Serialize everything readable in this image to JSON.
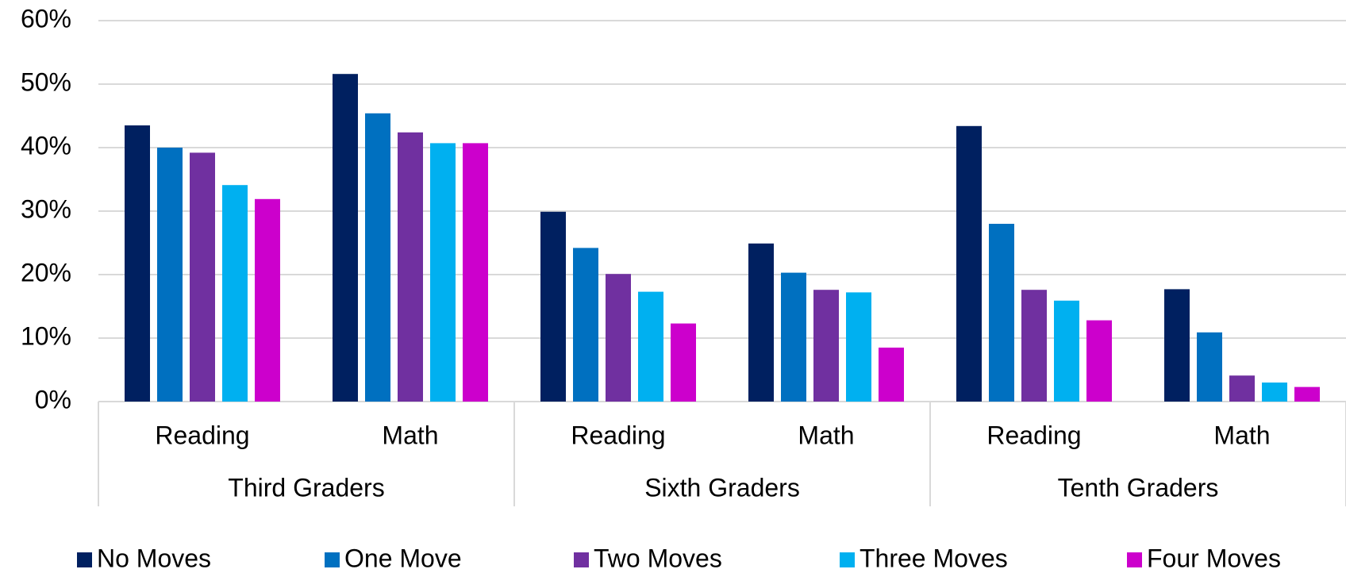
{
  "chart_data": {
    "type": "bar",
    "categories": [
      "Reading",
      "Math",
      "Reading",
      "Math",
      "Reading",
      "Math"
    ],
    "groups": [
      "Third Graders",
      "Sixth Graders",
      "Tenth Graders"
    ],
    "series": [
      {
        "name": "No Moves",
        "color": "#002060",
        "values": [
          43.5,
          51.6,
          29.9,
          24.9,
          43.4,
          17.7
        ]
      },
      {
        "name": "One Move",
        "color": "#0070c0",
        "values": [
          40.0,
          45.4,
          24.2,
          20.3,
          28.0,
          10.9
        ]
      },
      {
        "name": "Two Moves",
        "color": "#7030a0",
        "values": [
          39.2,
          42.4,
          20.1,
          17.6,
          17.6,
          4.1
        ]
      },
      {
        "name": "Three Moves",
        "color": "#00b0f0",
        "values": [
          34.1,
          40.7,
          17.3,
          17.2,
          15.9,
          3.0
        ]
      },
      {
        "name": "Four Moves",
        "color": "#cc00cc",
        "values": [
          31.9,
          40.7,
          12.3,
          8.5,
          12.8,
          2.3
        ]
      }
    ],
    "ylim": [
      0,
      60
    ],
    "yticks": [
      {
        "value": 0,
        "label": "0%"
      },
      {
        "value": 10,
        "label": "10%"
      },
      {
        "value": 20,
        "label": "20%"
      },
      {
        "value": 30,
        "label": "30%"
      },
      {
        "value": 40,
        "label": "40%"
      },
      {
        "value": 50,
        "label": "50%"
      },
      {
        "value": 60,
        "label": "60%"
      }
    ],
    "grid": true,
    "legend": "bottom"
  }
}
